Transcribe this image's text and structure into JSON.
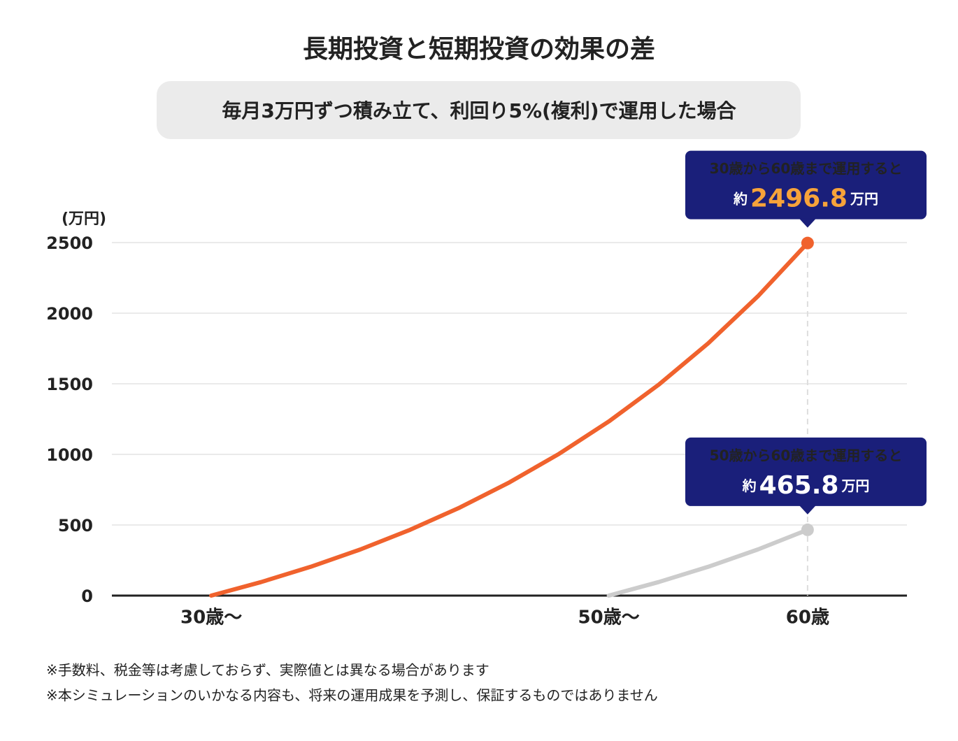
{
  "chart_data": {
    "type": "line",
    "title": "長期投資と短期投資の効果の差",
    "subtitle": "毎月3万円ずつ積み立て、利回り5%(複利)で運用した場合",
    "y_label": "(万円)",
    "xlim": [
      25,
      65
    ],
    "xticks": [
      {
        "value": 30,
        "label": "30歳〜"
      },
      {
        "value": 50,
        "label": "50歳〜"
      },
      {
        "value": 60,
        "label": "60歳"
      }
    ],
    "ylim": [
      0,
      2500
    ],
    "yticks": [
      0,
      500,
      1000,
      1500,
      2000,
      2500
    ],
    "grid": true,
    "series": [
      {
        "name": "30歳から60歳まで運用",
        "color": "#f0622d",
        "x": [
          30,
          32.5,
          35,
          37.5,
          40,
          42.5,
          45,
          47.5,
          50,
          52.5,
          55,
          57.5,
          60
        ],
        "values": [
          0,
          95.6,
          204.0,
          326.8,
          465.8,
          623.3,
          801.9,
          1004.1,
          1233.1,
          1492.5,
          1786.5,
          2119.5,
          2496.8
        ]
      },
      {
        "name": "50歳から60歳まで運用",
        "color": "#cccccc",
        "x": [
          50,
          52.5,
          55,
          57.5,
          60
        ],
        "values": [
          0,
          95.6,
          204.0,
          326.8,
          465.8
        ]
      }
    ],
    "annotations": [
      {
        "text": "30歳から60歳まで運用すると",
        "prefix": "約",
        "value_label": "2496.8",
        "unit": "万円",
        "value_color": "#f7a33a"
      },
      {
        "text": "50歳から60歳まで運用すると",
        "prefix": "約",
        "value_label": "465.8",
        "unit": "万円",
        "value_color": "#ffffff"
      }
    ],
    "notes": [
      "※手数料、税金等は考慮しておらず、実際値とは異なる場合があります",
      "※本シミュレーションのいかなる内容も、将来の運用成果を予測し、保証するものではありません"
    ]
  }
}
